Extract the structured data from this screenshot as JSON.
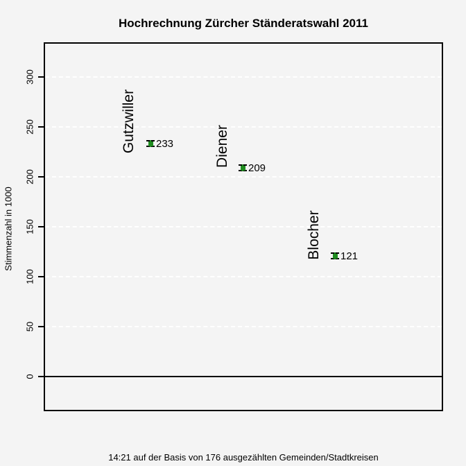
{
  "title": "Hochrechnung Zürcher Ständeratswahl 2011",
  "footer": "14:21 auf der Basis von 176 ausgezählten Gemeinden/Stadtkreisen",
  "y_axis": {
    "label": "Stimmenzahl in 1000",
    "tick_labels": [
      "0",
      "50",
      "100",
      "150",
      "200",
      "250",
      "300"
    ]
  },
  "colors": {
    "background": "#f4f4f4",
    "marker_green": "#1f8b1f",
    "gridline": "#ffffff",
    "axis": "#000000"
  },
  "chart_data": {
    "type": "scatter",
    "title": "Hochrechnung Zürcher Ständeratswahl 2011",
    "subtitle": "14:21 auf der Basis von 176 ausgezählten Gemeinden/Stadtkreisen",
    "ylabel": "Stimmenzahl in 1000",
    "xlabel": "",
    "categories": [
      "Gutzwiller",
      "Diener",
      "Blocher"
    ],
    "values": [
      233,
      209,
      121
    ],
    "value_labels": [
      "233",
      "209",
      "121"
    ],
    "yticks": [
      0,
      50,
      100,
      150,
      200,
      250,
      300
    ],
    "ylim": [
      -37,
      335
    ],
    "grid": "horizontal white dashed lines at each y tick",
    "zero_line": true,
    "marker": "green filled square with short black-capped error bar",
    "legend": "none"
  }
}
